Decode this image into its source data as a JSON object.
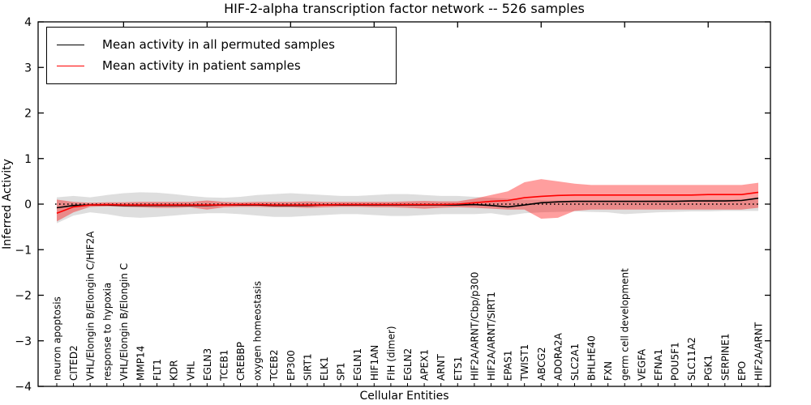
{
  "figure": {
    "title": "HIF-2-alpha transcription factor network -- 526 samples",
    "xlabel": "Cellular Entities",
    "ylabel": "Inferred Activity"
  },
  "legend": {
    "items": [
      {
        "label": "Mean activity in all permuted samples",
        "color": "#000000"
      },
      {
        "label": "Mean activity in patient samples",
        "color": "#ff0000"
      }
    ]
  },
  "chart_data": {
    "type": "line",
    "title": "HIF-2-alpha transcription factor network -- 526 samples",
    "xlabel": "Cellular Entities",
    "ylabel": "Inferred Activity",
    "ylim": [
      -4,
      4
    ],
    "yticks": [
      -4,
      -3,
      -2,
      -1,
      0,
      1,
      2,
      3,
      4
    ],
    "grid": false,
    "legend_position": "upper left",
    "zero_reference_line": {
      "y": 0,
      "style": "dotted",
      "color": "#000000"
    },
    "x_major_tick_every": 5,
    "categories": [
      "neuron apoptosis",
      "CITED2",
      "VHL/Elongin B/Elongin C/HIF2A",
      "response to hypoxia",
      "VHL/Elongin B/Elongin C",
      "MMP14",
      "FLT1",
      "KDR",
      "VHL",
      "EGLN3",
      "TCEB1",
      "CREBBP",
      "oxygen homeostasis",
      "TCEB2",
      "EP300",
      "SIRT1",
      "ELK1",
      "SP1",
      "EGLN1",
      "HIF1AN",
      "FIH (dimer)",
      "EGLN2",
      "APEX1",
      "ARNT",
      "ETS1",
      "HIF2A/ARNT/Cbp/p300",
      "HIF2A/ARNT/SIRT1",
      "EPAS1",
      "TWIST1",
      "ABCG2",
      "ADORA2A",
      "SLC2A1",
      "BHLHE40",
      "FXN",
      "germ cell development",
      "VEGFA",
      "EFNA1",
      "POU5F1",
      "SLC11A2",
      "PGK1",
      "SERPINE1",
      "EPO",
      "HIF2A/ARNT"
    ],
    "series": [
      {
        "name": "Mean activity in all permuted samples",
        "color": "#000000",
        "band_color": "#000000",
        "band_opacity": 0.13,
        "values": [
          -0.08,
          -0.03,
          -0.02,
          -0.02,
          -0.03,
          -0.03,
          -0.03,
          -0.03,
          -0.03,
          -0.03,
          -0.02,
          -0.02,
          -0.02,
          -0.03,
          -0.03,
          -0.03,
          -0.02,
          -0.02,
          -0.02,
          -0.02,
          -0.02,
          -0.02,
          -0.02,
          -0.02,
          -0.02,
          -0.01,
          -0.03,
          -0.06,
          -0.02,
          0.03,
          0.05,
          0.06,
          0.06,
          0.06,
          0.06,
          0.06,
          0.06,
          0.06,
          0.07,
          0.07,
          0.07,
          0.08,
          0.13
        ],
        "band_low": [
          -0.42,
          -0.25,
          -0.18,
          -0.22,
          -0.28,
          -0.3,
          -0.28,
          -0.25,
          -0.22,
          -0.2,
          -0.2,
          -0.22,
          -0.25,
          -0.28,
          -0.28,
          -0.26,
          -0.24,
          -0.22,
          -0.22,
          -0.24,
          -0.26,
          -0.26,
          -0.24,
          -0.22,
          -0.22,
          -0.22,
          -0.2,
          -0.25,
          -0.2,
          -0.18,
          -0.17,
          -0.16,
          -0.17,
          -0.18,
          -0.22,
          -0.2,
          -0.18,
          -0.17,
          -0.16,
          -0.16,
          -0.15,
          -0.15,
          -0.15
        ],
        "band_high": [
          0.15,
          0.18,
          0.15,
          0.2,
          0.24,
          0.26,
          0.25,
          0.22,
          0.18,
          0.15,
          0.14,
          0.16,
          0.2,
          0.22,
          0.24,
          0.22,
          0.2,
          0.18,
          0.18,
          0.2,
          0.22,
          0.22,
          0.2,
          0.18,
          0.18,
          0.16,
          0.14,
          0.12,
          0.1,
          0.09,
          0.08,
          0.08,
          0.08,
          0.08,
          0.08,
          0.08,
          0.09,
          0.09,
          0.09,
          0.1,
          0.1,
          0.1,
          0.1
        ]
      },
      {
        "name": "Mean activity in patient samples",
        "color": "#ff0000",
        "band_color": "#ff0000",
        "band_opacity": 0.38,
        "values": [
          -0.2,
          -0.06,
          -0.02,
          -0.01,
          -0.02,
          -0.02,
          -0.02,
          -0.02,
          -0.02,
          -0.02,
          -0.02,
          -0.01,
          -0.01,
          -0.02,
          -0.02,
          -0.02,
          -0.02,
          -0.01,
          -0.01,
          -0.01,
          -0.01,
          -0.01,
          -0.01,
          -0.01,
          0.0,
          0.03,
          0.06,
          0.08,
          0.14,
          0.17,
          0.19,
          0.2,
          0.2,
          0.2,
          0.2,
          0.2,
          0.2,
          0.2,
          0.2,
          0.21,
          0.21,
          0.21,
          0.26
        ],
        "band_low": [
          -0.38,
          -0.18,
          -0.06,
          -0.05,
          -0.06,
          -0.07,
          -0.08,
          -0.08,
          -0.07,
          -0.12,
          -0.07,
          -0.06,
          -0.06,
          -0.07,
          -0.07,
          -0.08,
          -0.07,
          -0.06,
          -0.06,
          -0.07,
          -0.07,
          -0.08,
          -0.1,
          -0.08,
          -0.07,
          -0.08,
          -0.1,
          -0.12,
          -0.12,
          -0.32,
          -0.3,
          -0.15,
          -0.12,
          -0.12,
          -0.12,
          -0.12,
          -0.12,
          -0.12,
          -0.12,
          -0.12,
          -0.12,
          -0.12,
          -0.08
        ],
        "band_high": [
          0.1,
          0.05,
          0.03,
          0.04,
          0.04,
          0.05,
          0.05,
          0.05,
          0.05,
          0.08,
          0.05,
          0.04,
          0.05,
          0.05,
          0.05,
          0.06,
          0.05,
          0.05,
          0.05,
          0.05,
          0.05,
          0.06,
          0.07,
          0.06,
          0.06,
          0.12,
          0.2,
          0.28,
          0.48,
          0.55,
          0.5,
          0.45,
          0.42,
          0.42,
          0.42,
          0.42,
          0.42,
          0.42,
          0.42,
          0.42,
          0.42,
          0.42,
          0.47
        ]
      }
    ]
  }
}
